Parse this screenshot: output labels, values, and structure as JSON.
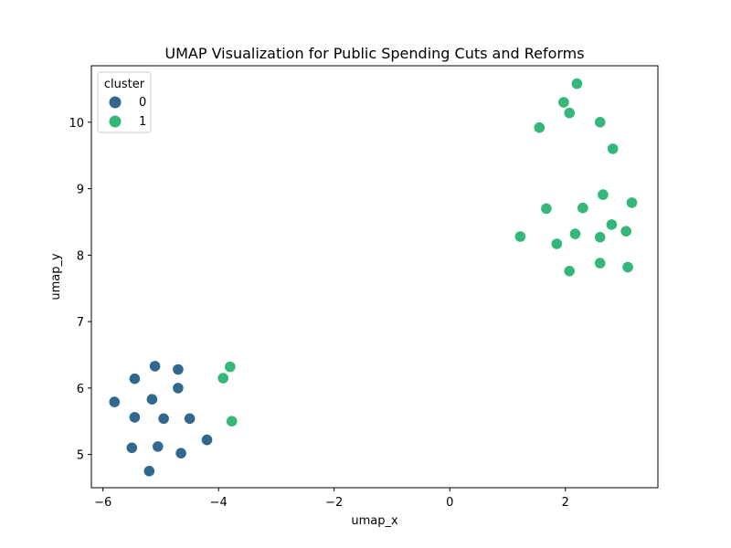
{
  "chart_data": {
    "type": "scatter",
    "title": "UMAP Visualization for Public Spending Cuts and Reforms",
    "xlabel": "umap_x",
    "ylabel": "umap_y",
    "xlim": [
      -6.2,
      3.6
    ],
    "ylim": [
      4.5,
      10.85
    ],
    "xticks": [
      -6,
      -4,
      -2,
      0,
      2
    ],
    "xtick_labels": [
      "−6",
      "−4",
      "−2",
      "0",
      "2"
    ],
    "yticks": [
      5,
      6,
      7,
      8,
      9,
      10
    ],
    "ytick_labels": [
      "5",
      "6",
      "7",
      "8",
      "9",
      "10"
    ],
    "grid": false,
    "legend": {
      "title": "cluster",
      "placement": "top-left"
    },
    "series": [
      {
        "name": "0",
        "color": "#31688e",
        "points": [
          [
            -5.8,
            5.79
          ],
          [
            -5.45,
            6.14
          ],
          [
            -5.1,
            6.33
          ],
          [
            -4.7,
            6.28
          ],
          [
            -5.15,
            5.83
          ],
          [
            -4.7,
            6.0
          ],
          [
            -5.45,
            5.56
          ],
          [
            -4.95,
            5.54
          ],
          [
            -4.5,
            5.54
          ],
          [
            -5.5,
            5.1
          ],
          [
            -5.05,
            5.12
          ],
          [
            -4.65,
            5.02
          ],
          [
            -4.2,
            5.22
          ],
          [
            -5.2,
            4.75
          ]
        ]
      },
      {
        "name": "1",
        "color": "#35b779",
        "points": [
          [
            -3.8,
            6.32
          ],
          [
            -3.92,
            6.15
          ],
          [
            -3.77,
            5.5
          ],
          [
            2.2,
            10.58
          ],
          [
            1.97,
            10.3
          ],
          [
            2.07,
            10.14
          ],
          [
            2.6,
            10.0
          ],
          [
            1.55,
            9.92
          ],
          [
            2.82,
            9.6
          ],
          [
            2.65,
            8.91
          ],
          [
            3.15,
            8.79
          ],
          [
            1.67,
            8.7
          ],
          [
            2.3,
            8.71
          ],
          [
            2.8,
            8.46
          ],
          [
            3.05,
            8.36
          ],
          [
            1.22,
            8.28
          ],
          [
            2.17,
            8.32
          ],
          [
            2.6,
            8.27
          ],
          [
            1.85,
            8.17
          ],
          [
            2.6,
            7.88
          ],
          [
            3.08,
            7.82
          ],
          [
            2.07,
            7.76
          ]
        ]
      }
    ]
  }
}
